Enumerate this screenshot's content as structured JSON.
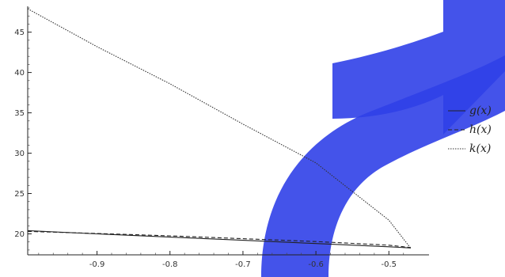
{
  "chart_data": {
    "type": "line",
    "title": "",
    "xlabel": "",
    "ylabel": "",
    "xlim": [
      -0.995,
      -0.445
    ],
    "ylim": [
      17.4,
      48.2
    ],
    "x_ticks": [
      -0.9,
      -0.8,
      -0.7,
      -0.6,
      -0.5
    ],
    "x_tick_labels": [
      "-0.9",
      "-0.8",
      "-0.7",
      "-0.6",
      "-0.5"
    ],
    "y_ticks": [
      20,
      25,
      30,
      35,
      40,
      45
    ],
    "y_tick_labels": [
      "20",
      "25",
      "30",
      "35",
      "40",
      "45"
    ],
    "legend_position": "right",
    "grid": false,
    "series": [
      {
        "name": "g(x)",
        "style": "solid",
        "color": "#222222",
        "x": [
          -0.995,
          -0.9,
          -0.8,
          -0.7,
          -0.6,
          -0.5,
          -0.47
        ],
        "y": [
          20.4,
          20.0,
          19.6,
          19.2,
          18.8,
          18.4,
          18.25
        ]
      },
      {
        "name": "h(x)",
        "style": "dashed",
        "color": "#222222",
        "x": [
          -0.995,
          -0.9,
          -0.8,
          -0.7,
          -0.6,
          -0.5,
          -0.47
        ],
        "y": [
          20.3,
          20.05,
          19.75,
          19.4,
          19.05,
          18.6,
          18.3
        ]
      },
      {
        "name": "k(x)",
        "style": "dotted",
        "color": "#333333",
        "x": [
          -0.995,
          -0.9,
          -0.8,
          -0.7,
          -0.6,
          -0.5,
          -0.47
        ],
        "y": [
          47.9,
          43.2,
          38.6,
          33.6,
          28.8,
          21.7,
          18.2
        ]
      }
    ]
  },
  "watermark": {
    "color": "#2f3fe6"
  }
}
